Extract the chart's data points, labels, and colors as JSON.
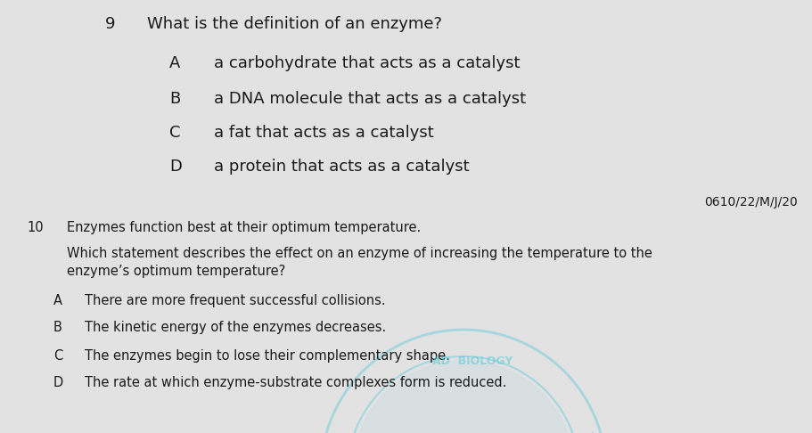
{
  "bg_color": "#e2e2e2",
  "text_color": "#1a1a1a",
  "q9_number": "9",
  "q9_question": "What is the definition of an enzyme?",
  "q9_options": [
    [
      "A",
      "a carbohydrate that acts as a catalyst"
    ],
    [
      "B",
      "a DNA molecule that acts as a catalyst"
    ],
    [
      "C",
      "a fat that acts as a catalyst"
    ],
    [
      "D",
      "a protein that acts as a catalyst"
    ]
  ],
  "ref_code": "0610/22/M/J/20",
  "q10_number": "10",
  "q10_intro": "Enzymes function best at their optimum temperature.",
  "q10_question": "Which statement describes the effect on an enzyme of increasing the temperature to the\nenzyme’s optimum temperature?",
  "q10_options": [
    [
      "A",
      "There are more frequent successful collisions."
    ],
    [
      "B",
      "The kinetic energy of the enzymes decreases."
    ],
    [
      "C",
      "The enzymes begin to lose their complementary shape."
    ],
    [
      "D",
      "The rate at which enzyme-substrate complexes form is reduced."
    ]
  ],
  "watermark_color": "#5bc8d8",
  "watermark_alpha": 0.45,
  "q9_num_fontsize": 13,
  "q9_q_fontsize": 13,
  "q9_opt_letter_fontsize": 13,
  "q9_opt_text_fontsize": 13,
  "q10_intro_fontsize": 10.5,
  "q10_q_fontsize": 10.5,
  "q10_opt_fontsize": 10.5,
  "ref_fontsize": 10
}
